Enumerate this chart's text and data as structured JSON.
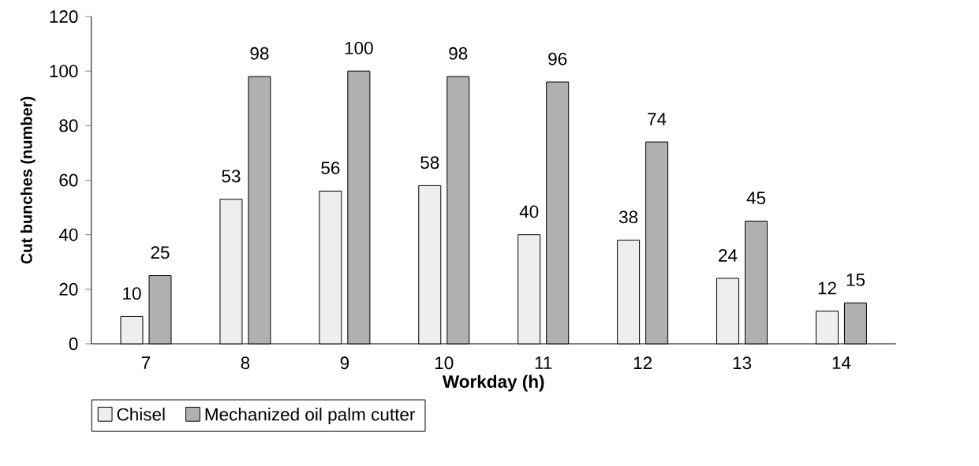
{
  "chart_data": {
    "type": "bar",
    "xlabel": "Workday  (h)",
    "ylabel": "Cut bunches (number)",
    "categories": [
      "7",
      "8",
      "9",
      "10",
      "11",
      "12",
      "13",
      "14"
    ],
    "series": [
      {
        "name": "Chisel",
        "color": "#eeeeee",
        "values": [
          10,
          53,
          56,
          58,
          40,
          38,
          24,
          12
        ]
      },
      {
        "name": "Mechanized oil palm cutter",
        "color": "#b0b0b0",
        "values": [
          25,
          98,
          100,
          98,
          96,
          74,
          45,
          15
        ]
      }
    ],
    "ylim": [
      0,
      120
    ],
    "yticks": [
      0,
      20,
      40,
      60,
      80,
      100,
      120
    ],
    "data_labels": true,
    "legend": "bottom left"
  }
}
